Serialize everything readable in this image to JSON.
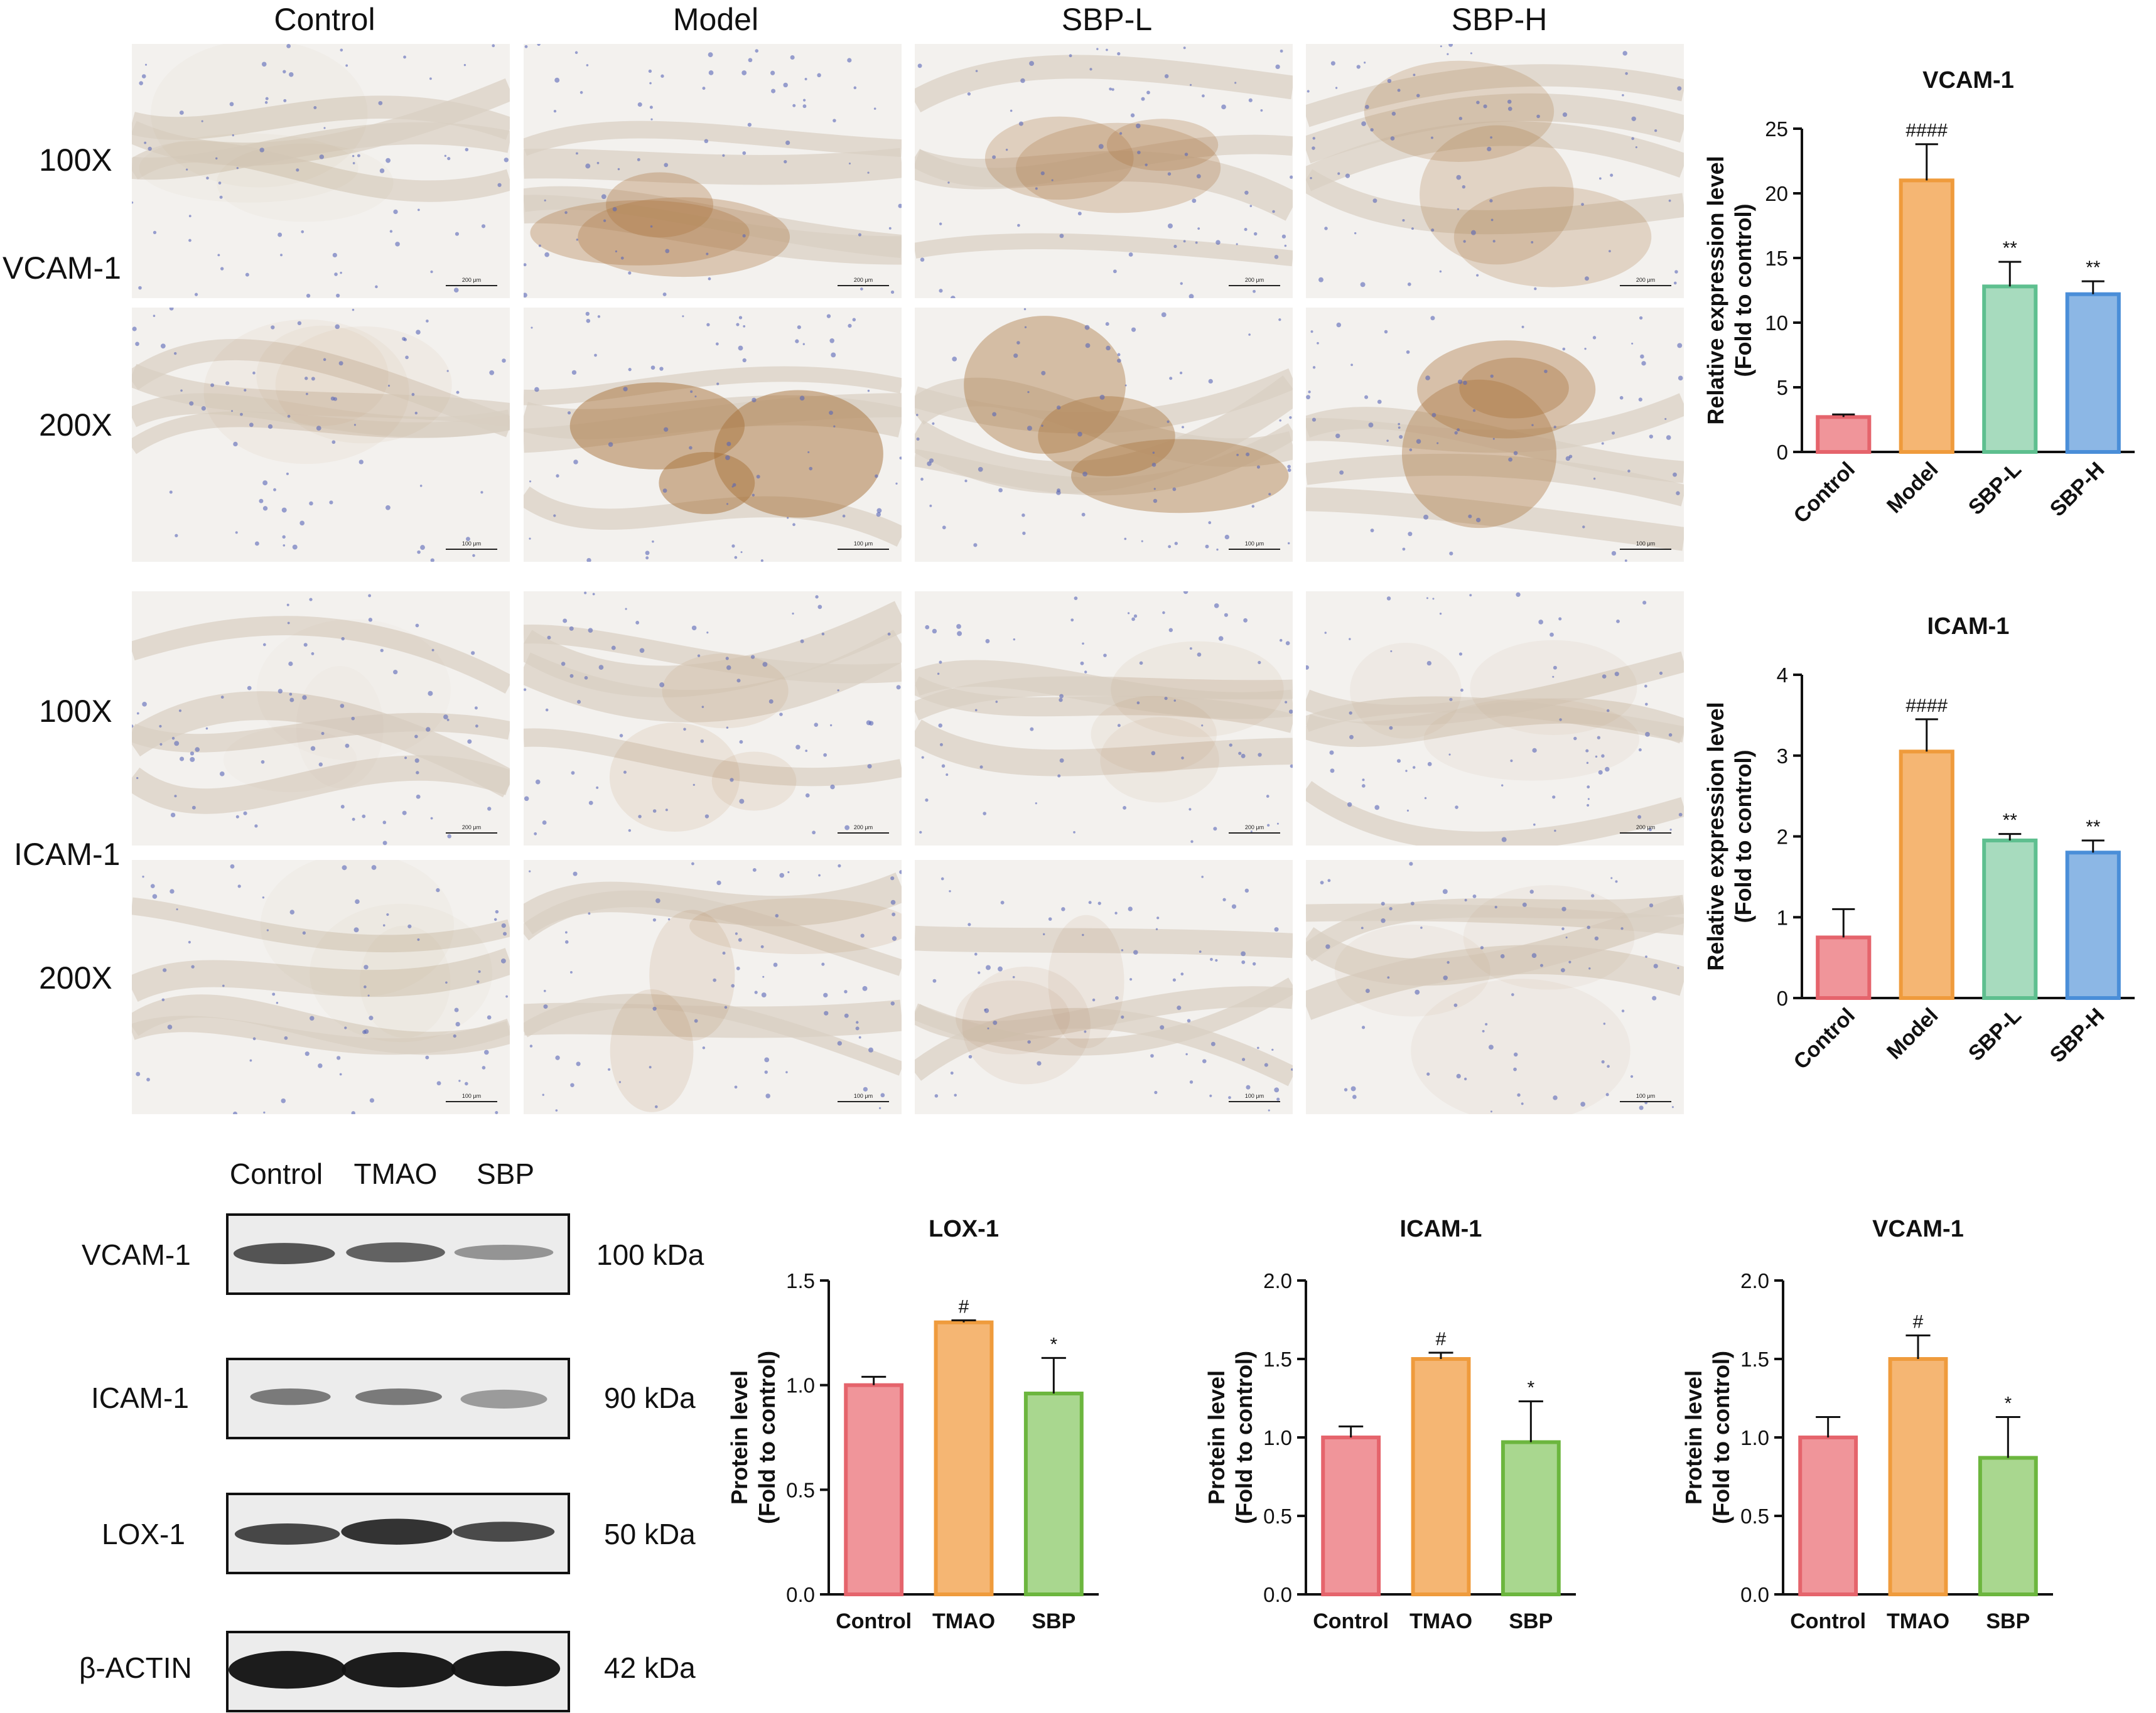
{
  "ihc": {
    "columns": [
      "Control",
      "Model",
      "SBP-L",
      "SBP-H"
    ],
    "markers": [
      "VCAM-1",
      "ICAM-1"
    ],
    "magnifications": [
      "100X",
      "200X"
    ],
    "scale_bars": [
      "200 μm",
      "100 μm"
    ]
  },
  "western_blot": {
    "lanes": [
      "Control",
      "TMAO",
      "SBP"
    ],
    "rows": [
      {
        "protein": "VCAM-1",
        "size": "100 kDa"
      },
      {
        "protein": "ICAM-1",
        "size": "90 kDa"
      },
      {
        "protein": "LOX-1",
        "size": "50 kDa"
      },
      {
        "protein": "β-ACTIN",
        "size": "42 kDa"
      }
    ]
  },
  "chart_data": [
    {
      "id": "vcam_ihc",
      "type": "bar",
      "title": "VCAM-1",
      "categories": [
        "Control",
        "Model",
        "SBP-L",
        "SBP-H"
      ],
      "values": [
        2.7,
        21.0,
        12.8,
        12.2
      ],
      "errors": [
        0.2,
        2.8,
        1.9,
        1.0
      ],
      "annotations": [
        "",
        "####",
        "**",
        "**"
      ],
      "colors": [
        "#f0959a",
        "#f5b673",
        "#a7dbbe",
        "#8cb7e5"
      ],
      "stroke_colors": [
        "#e5646c",
        "#ef9b3c",
        "#5ebf8f",
        "#4a8ed8"
      ],
      "ylabel": [
        "Relative expression level",
        "(Fold to control)"
      ],
      "ylim": [
        0,
        25
      ],
      "yticks": [
        0,
        5,
        10,
        15,
        20,
        25
      ],
      "ytick_labels": [
        "0",
        "5",
        "10",
        "15",
        "20",
        "25"
      ],
      "rotate_xticks": true
    },
    {
      "id": "icam_ihc",
      "type": "bar",
      "title": "ICAM-1",
      "categories": [
        "Control",
        "Model",
        "SBP-L",
        "SBP-H"
      ],
      "values": [
        0.75,
        3.05,
        1.95,
        1.8
      ],
      "errors": [
        0.35,
        0.4,
        0.08,
        0.15
      ],
      "annotations": [
        "",
        "####",
        "**",
        "**"
      ],
      "colors": [
        "#f0959a",
        "#f5b673",
        "#a7dbbe",
        "#8cb7e5"
      ],
      "stroke_colors": [
        "#e5646c",
        "#ef9b3c",
        "#5ebf8f",
        "#4a8ed8"
      ],
      "ylabel": [
        "Relative expression level",
        "(Fold to control)"
      ],
      "ylim": [
        0,
        4
      ],
      "yticks": [
        0,
        1,
        2,
        3,
        4
      ],
      "ytick_labels": [
        "0",
        "1",
        "2",
        "3",
        "4"
      ],
      "rotate_xticks": true
    },
    {
      "id": "lox_wb",
      "type": "bar",
      "title": "LOX-1",
      "categories": [
        "Control",
        "TMAO",
        "SBP"
      ],
      "values": [
        1.0,
        1.3,
        0.96
      ],
      "errors": [
        0.04,
        0.01,
        0.17
      ],
      "annotations": [
        "",
        "#",
        "*"
      ],
      "colors": [
        "#f0959a",
        "#f5b673",
        "#a9d78f"
      ],
      "stroke_colors": [
        "#e5646c",
        "#ef9b3c",
        "#6cb63e"
      ],
      "ylabel": [
        "Protein level",
        "(Fold to control)"
      ],
      "ylim": [
        0,
        1.5
      ],
      "yticks": [
        0,
        0.5,
        1.0,
        1.5
      ],
      "ytick_labels": [
        "0.0",
        "0.5",
        "1.0",
        "1.5"
      ],
      "rotate_xticks": false
    },
    {
      "id": "icam_wb",
      "type": "bar",
      "title": "ICAM-1",
      "categories": [
        "Control",
        "TMAO",
        "SBP"
      ],
      "values": [
        1.0,
        1.5,
        0.97
      ],
      "errors": [
        0.07,
        0.04,
        0.26
      ],
      "annotations": [
        "",
        "#",
        "*"
      ],
      "colors": [
        "#f0959a",
        "#f5b673",
        "#a9d78f"
      ],
      "stroke_colors": [
        "#e5646c",
        "#ef9b3c",
        "#6cb63e"
      ],
      "ylabel": [
        "Protein level",
        "(Fold to control)"
      ],
      "ylim": [
        0,
        2.0
      ],
      "yticks": [
        0,
        0.5,
        1.0,
        1.5,
        2.0
      ],
      "ytick_labels": [
        "0.0",
        "0.5",
        "1.0",
        "1.5",
        "2.0"
      ],
      "rotate_xticks": false
    },
    {
      "id": "vcam_wb",
      "type": "bar",
      "title": "VCAM-1",
      "categories": [
        "Control",
        "TMAO",
        "SBP"
      ],
      "values": [
        1.0,
        1.5,
        0.87
      ],
      "errors": [
        0.13,
        0.15,
        0.26
      ],
      "annotations": [
        "",
        "#",
        "*"
      ],
      "colors": [
        "#f0959a",
        "#f5b673",
        "#a9d78f"
      ],
      "stroke_colors": [
        "#e5646c",
        "#ef9b3c",
        "#6cb63e"
      ],
      "ylabel": [
        "Protein level",
        "(Fold to control)"
      ],
      "ylim": [
        0,
        2.0
      ],
      "yticks": [
        0,
        0.5,
        1.0,
        1.5,
        2.0
      ],
      "ytick_labels": [
        "0.0",
        "0.5",
        "1.0",
        "1.5",
        "2.0"
      ],
      "rotate_xticks": false
    }
  ]
}
